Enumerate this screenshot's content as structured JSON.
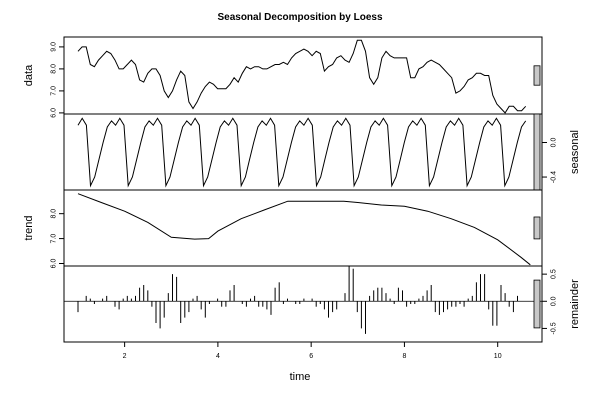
{
  "chart_data": {
    "type": "line",
    "title": "Seasonal Decomposition by Loess",
    "xlabel": "time",
    "xlim": [
      0.7,
      10.95
    ],
    "x_ticks": [
      2,
      4,
      6,
      8,
      10
    ],
    "x_tick_labels": [
      "2",
      "4",
      "6",
      "8",
      "10"
    ],
    "x_start": 1.0,
    "x_step": 0.1,
    "range_bars": true,
    "panels": [
      {
        "name": "data",
        "ylim": [
          5.95,
          9.45
        ],
        "ticks": [
          6.0,
          7.0,
          8.0,
          9.0
        ],
        "tick_labels": [
          "6.0",
          "7.0",
          "8.0",
          "9.0"
        ],
        "tick_side": "left",
        "style": "line",
        "values": [
          8.8,
          9.0,
          9.0,
          8.2,
          8.1,
          8.4,
          8.6,
          8.8,
          8.7,
          8.4,
          8.0,
          8.0,
          8.2,
          8.4,
          8.2,
          7.5,
          7.4,
          7.8,
          8.0,
          8.0,
          7.7,
          7.0,
          6.7,
          7.0,
          7.5,
          7.9,
          7.7,
          6.5,
          6.2,
          6.5,
          6.9,
          7.2,
          7.4,
          7.3,
          7.1,
          7.1,
          7.1,
          7.3,
          7.6,
          7.4,
          7.8,
          8.1,
          8.0,
          8.1,
          8.1,
          8.0,
          8.0,
          8.1,
          8.2,
          8.2,
          8.3,
          8.2,
          8.5,
          8.7,
          8.8,
          8.9,
          8.8,
          8.6,
          8.8,
          8.7,
          7.9,
          8.1,
          8.2,
          8.5,
          8.6,
          8.4,
          8.3,
          8.7,
          9.3,
          9.3,
          8.8,
          7.6,
          7.3,
          7.6,
          8.5,
          8.8,
          8.6,
          8.5,
          8.5,
          8.5,
          8.5,
          7.6,
          7.6,
          8.0,
          8.1,
          8.3,
          8.4,
          8.3,
          8.2,
          8.0,
          7.8,
          7.6,
          6.9,
          7.0,
          7.2,
          7.5,
          7.6,
          7.8,
          7.8,
          7.7,
          7.7,
          6.8,
          6.4,
          6.2,
          6.0,
          6.3,
          6.3,
          6.1,
          6.1,
          6.3
        ]
      },
      {
        "name": "seasonal",
        "ylim": [
          -0.55,
          0.33
        ],
        "ticks": [
          -0.4,
          0.0
        ],
        "tick_labels": [
          "-0.4",
          "0.0"
        ],
        "tick_side": "right",
        "style": "line",
        "cycle": [
          0.2,
          0.28,
          0.2,
          -0.5,
          -0.4,
          -0.2,
          0.0,
          0.18,
          0.25
        ],
        "repeats": 12
      },
      {
        "name": "trend",
        "ylim": [
          5.9,
          8.95
        ],
        "ticks": [
          6.0,
          7.0,
          8.0
        ],
        "tick_labels": [
          "6.0",
          "7.0",
          "8.0"
        ],
        "tick_side": "left",
        "style": "line",
        "x": [
          1.0,
          1.5,
          2.0,
          2.5,
          3.0,
          3.5,
          3.8,
          4.0,
          4.5,
          5.0,
          5.5,
          6.0,
          6.5,
          6.7,
          7.0,
          7.5,
          8.0,
          8.5,
          9.0,
          9.5,
          10.0,
          10.5,
          10.7
        ],
        "values": [
          8.8,
          8.45,
          8.1,
          7.65,
          7.05,
          6.98,
          7.0,
          7.3,
          7.8,
          8.15,
          8.5,
          8.5,
          8.5,
          8.5,
          8.45,
          8.35,
          8.3,
          8.1,
          7.8,
          7.45,
          6.95,
          6.25,
          5.95
        ]
      },
      {
        "name": "remainder",
        "ylim": [
          -0.75,
          0.65
        ],
        "ticks": [
          -0.5,
          0.0,
          0.5
        ],
        "tick_labels": [
          "-0.5",
          "0.0",
          "0.5"
        ],
        "tick_side": "right",
        "style": "bars",
        "values": [
          -0.2,
          0.0,
          0.1,
          0.05,
          -0.05,
          0.0,
          0.05,
          0.1,
          0.0,
          -0.1,
          -0.15,
          0.05,
          0.1,
          0.05,
          0.1,
          0.25,
          0.3,
          0.2,
          -0.1,
          -0.4,
          -0.5,
          -0.3,
          0.15,
          0.5,
          0.45,
          -0.4,
          -0.3,
          -0.2,
          0.05,
          0.1,
          -0.15,
          -0.3,
          -0.05,
          0.0,
          0.05,
          -0.1,
          -0.1,
          0.2,
          0.3,
          0.0,
          -0.05,
          -0.1,
          0.05,
          0.1,
          -0.1,
          -0.1,
          -0.15,
          -0.25,
          0.25,
          0.35,
          -0.05,
          0.05,
          0.0,
          -0.05,
          -0.05,
          0.05,
          0.0,
          0.05,
          -0.1,
          -0.05,
          -0.15,
          -0.3,
          -0.2,
          -0.15,
          0.0,
          0.15,
          0.65,
          0.6,
          -0.2,
          -0.5,
          -0.6,
          0.1,
          0.2,
          0.25,
          0.25,
          0.15,
          0.05,
          -0.05,
          0.25,
          0.2,
          -0.1,
          -0.05,
          -0.05,
          0.05,
          0.1,
          0.2,
          0.3,
          -0.2,
          -0.25,
          -0.2,
          -0.15,
          -0.1,
          -0.1,
          -0.05,
          -0.1,
          0.05,
          0.1,
          0.35,
          0.5,
          0.5,
          -0.15,
          -0.45,
          -0.45,
          0.3,
          0.15,
          -0.1,
          -0.2,
          0.1,
          0.0,
          0.0
        ]
      }
    ]
  }
}
